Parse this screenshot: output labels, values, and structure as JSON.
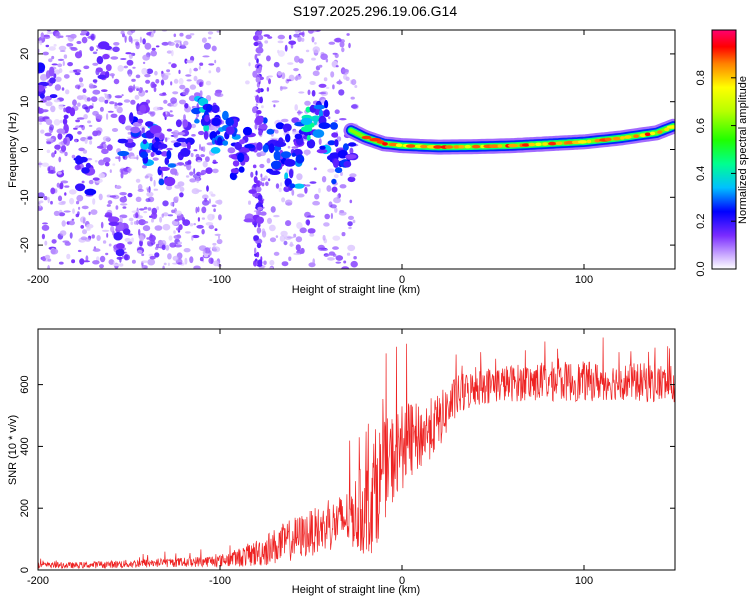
{
  "title": "S197.2025.296.19.06.G14",
  "chart_data": [
    {
      "type": "heatmap",
      "xlabel": "Height of straight line (km)",
      "ylabel": "Frequency (Hz)",
      "xlim": [
        -200,
        150
      ],
      "ylim": [
        -25,
        25
      ],
      "xticks": [
        -200,
        -100,
        0,
        100
      ],
      "yticks": [
        -20,
        -10,
        0,
        10,
        20
      ],
      "colorbar": {
        "label": "Normalized spectral amplitude",
        "range": [
          0,
          1
        ],
        "ticks": [
          "0.0",
          "0.2",
          "0.4",
          "0.6",
          "0.8"
        ]
      },
      "ridge": {
        "x": [
          -28,
          -20,
          -10,
          0,
          20,
          40,
          60,
          80,
          100,
          120,
          140,
          150
        ],
        "freq": [
          4,
          2.5,
          1.2,
          0.8,
          0.5,
          0.6,
          0.8,
          1.2,
          1.6,
          2.4,
          3.5,
          5
        ]
      },
      "noise_blobs": [
        {
          "x": -195,
          "y": 15,
          "a": 0.25
        },
        {
          "x": -185,
          "y": 5,
          "a": 0.2
        },
        {
          "x": -175,
          "y": -5,
          "a": 0.25
        },
        {
          "x": -165,
          "y": 18,
          "a": 0.2
        },
        {
          "x": -155,
          "y": -18,
          "a": 0.2
        },
        {
          "x": -150,
          "y": 3,
          "a": 0.3
        },
        {
          "x": -145,
          "y": 8,
          "a": 0.2
        },
        {
          "x": -140,
          "y": 1,
          "a": 0.35
        },
        {
          "x": -135,
          "y": 4,
          "a": 0.25
        },
        {
          "x": -130,
          "y": -3,
          "a": 0.3
        },
        {
          "x": -120,
          "y": 2,
          "a": 0.25
        },
        {
          "x": -110,
          "y": 8,
          "a": 0.4
        },
        {
          "x": -105,
          "y": 5,
          "a": 0.3
        },
        {
          "x": -100,
          "y": 2,
          "a": 0.35
        },
        {
          "x": -95,
          "y": 4,
          "a": 0.4
        },
        {
          "x": -90,
          "y": -2,
          "a": 0.3
        },
        {
          "x": -85,
          "y": 1,
          "a": 0.25
        },
        {
          "x": -80,
          "y": -12,
          "a": 0.2
        },
        {
          "x": -75,
          "y": 3,
          "a": 0.3
        },
        {
          "x": -70,
          "y": -2,
          "a": 0.35
        },
        {
          "x": -65,
          "y": 1,
          "a": 0.3
        },
        {
          "x": -60,
          "y": -4,
          "a": 0.4
        },
        {
          "x": -55,
          "y": 2,
          "a": 0.3
        },
        {
          "x": -50,
          "y": 5,
          "a": 0.45
        },
        {
          "x": -45,
          "y": 6,
          "a": 0.4
        },
        {
          "x": -40,
          "y": 1,
          "a": 0.35
        },
        {
          "x": -35,
          "y": -3,
          "a": 0.3
        },
        {
          "x": -30,
          "y": 0,
          "a": 0.3
        }
      ]
    },
    {
      "type": "line",
      "xlabel": "Height of straight line (km)",
      "ylabel": "SNR (10 * v/v)",
      "xlim": [
        -200,
        150
      ],
      "ylim": [
        0,
        780
      ],
      "xticks": [
        -200,
        -100,
        0,
        100
      ],
      "yticks": [
        0,
        200,
        400,
        600
      ],
      "series": [
        {
          "name": "SNR",
          "color": "#ee2222",
          "x": [
            -200,
            -180,
            -160,
            -140,
            -120,
            -100,
            -90,
            -80,
            -70,
            -60,
            -50,
            -40,
            -30,
            -20,
            -15,
            -10,
            -5,
            0,
            10,
            20,
            25,
            30,
            40,
            50,
            60,
            80,
            100,
            120,
            140,
            150
          ],
          "mean": [
            15,
            15,
            18,
            22,
            25,
            30,
            40,
            55,
            75,
            100,
            120,
            140,
            170,
            200,
            260,
            320,
            360,
            400,
            430,
            480,
            520,
            560,
            590,
            600,
            605,
            610,
            610,
            610,
            605,
            600
          ],
          "spread": [
            10,
            10,
            12,
            15,
            15,
            20,
            30,
            45,
            60,
            70,
            75,
            80,
            90,
            160,
            200,
            160,
            150,
            140,
            110,
            90,
            80,
            70,
            60,
            60,
            60,
            65,
            65,
            60,
            65,
            60
          ]
        }
      ]
    }
  ]
}
